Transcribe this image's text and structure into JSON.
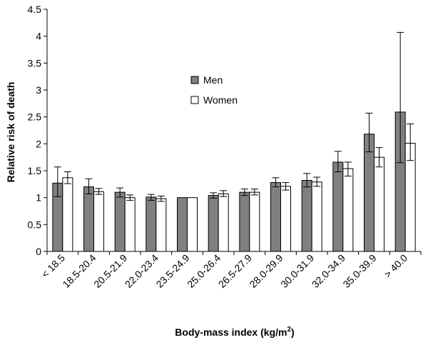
{
  "chart_data": {
    "type": "bar",
    "xlabel": "Body-mass index (kg/m²)",
    "xlabel_main": "Body-mass index (kg/m",
    "xlabel_sup": "2",
    "xlabel_close": ")",
    "ylabel": "Relative risk of death",
    "ylim": [
      0,
      4.5
    ],
    "yticks": [
      "0",
      "0.5",
      "1",
      "1.5",
      "2",
      "2.5",
      "3",
      "3.5",
      "4",
      "4.5"
    ],
    "categories": [
      "< 18.5",
      "18.5-20.4",
      "20.5-21.9",
      "22.0-23.4",
      "23.5-24.9",
      "25.0-26.4",
      "26.5-27.9",
      "28.0-29.9",
      "30.0-31.9",
      "32.0-34.9",
      "35.0-39.9",
      "> 40.0"
    ],
    "series": [
      {
        "name": "Men",
        "color": "#808080",
        "values": [
          1.27,
          1.2,
          1.1,
          1.01,
          1.0,
          1.04,
          1.1,
          1.28,
          1.32,
          1.66,
          2.18,
          2.59
        ],
        "error_low": [
          1.02,
          1.07,
          1.01,
          0.95,
          1.0,
          0.99,
          1.04,
          1.2,
          1.2,
          1.48,
          1.85,
          1.65
        ],
        "error_high": [
          1.57,
          1.35,
          1.18,
          1.06,
          1.0,
          1.09,
          1.16,
          1.37,
          1.45,
          1.86,
          2.57,
          4.07
        ]
      },
      {
        "name": "Women",
        "color": "#ffffff",
        "values": [
          1.37,
          1.11,
          1.0,
          0.98,
          1.0,
          1.07,
          1.1,
          1.21,
          1.29,
          1.54,
          1.75,
          2.01
        ],
        "error_low": [
          1.26,
          1.06,
          0.95,
          0.93,
          1.0,
          1.02,
          1.05,
          1.14,
          1.21,
          1.4,
          1.57,
          1.69
        ],
        "error_high": [
          1.48,
          1.17,
          1.05,
          1.03,
          1.0,
          1.13,
          1.16,
          1.28,
          1.38,
          1.66,
          1.93,
          2.37
        ]
      }
    ],
    "legend_position": "middle"
  }
}
